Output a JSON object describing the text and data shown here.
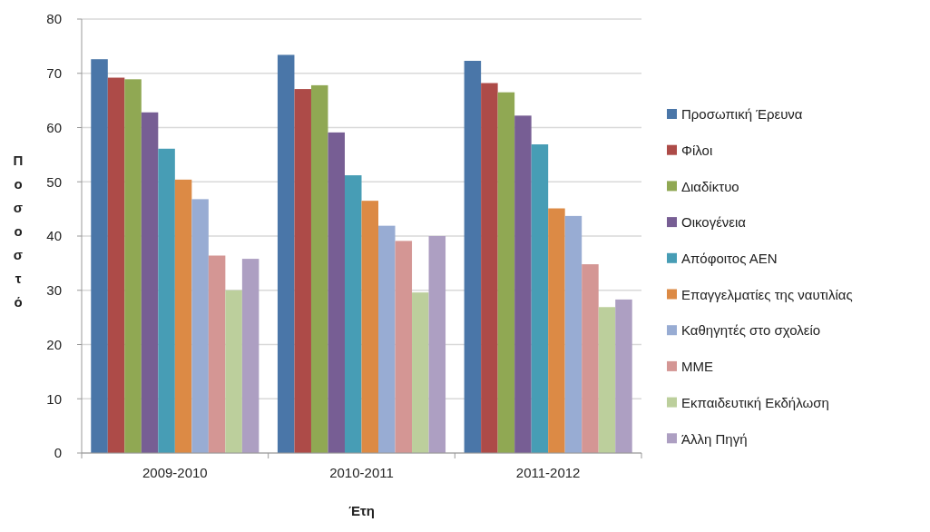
{
  "chart_data": {
    "type": "bar",
    "xlabel": "Έτη",
    "ylabel": "Ποσοστό",
    "categories": [
      "2009-2010",
      "2010-2011",
      "2011-2012"
    ],
    "ylim": [
      0,
      80
    ],
    "yticks": [
      0,
      10,
      20,
      30,
      40,
      50,
      60,
      70,
      80
    ],
    "grid": "y",
    "legend": "right",
    "series": [
      {
        "name": "Προσωπική Έρευνα",
        "color": "#4a76a8",
        "values": [
          72.6,
          73.4,
          72.3
        ]
      },
      {
        "name": "Φίλοι",
        "color": "#ad4b48",
        "values": [
          69.2,
          67.1,
          68.2
        ]
      },
      {
        "name": "Διαδίκτυο",
        "color": "#90a853",
        "values": [
          68.9,
          67.8,
          66.5
        ]
      },
      {
        "name": "Οικογένεια",
        "color": "#775e94",
        "values": [
          62.8,
          59.1,
          62.2
        ]
      },
      {
        "name": "Απόφοιτος ΑΕΝ",
        "color": "#479db5",
        "values": [
          56.1,
          51.2,
          56.9
        ]
      },
      {
        "name": "Επαγγελματίες της ναυτιλίας",
        "color": "#dc8a45",
        "values": [
          50.4,
          46.5,
          45.1
        ]
      },
      {
        "name": "Καθηγητές στο σχολείο",
        "color": "#98acd3",
        "values": [
          46.8,
          41.9,
          43.7
        ]
      },
      {
        "name": "ΜΜΕ",
        "color": "#d49694",
        "values": [
          36.4,
          39.1,
          34.8
        ]
      },
      {
        "name": "Εκπαιδευτική Εκδήλωση",
        "color": "#bccf9c",
        "values": [
          30,
          29.6,
          26.9
        ]
      },
      {
        "name": "Άλλη Πηγή",
        "color": "#ad9fc2",
        "values": [
          35.8,
          40,
          28.3
        ]
      }
    ]
  }
}
